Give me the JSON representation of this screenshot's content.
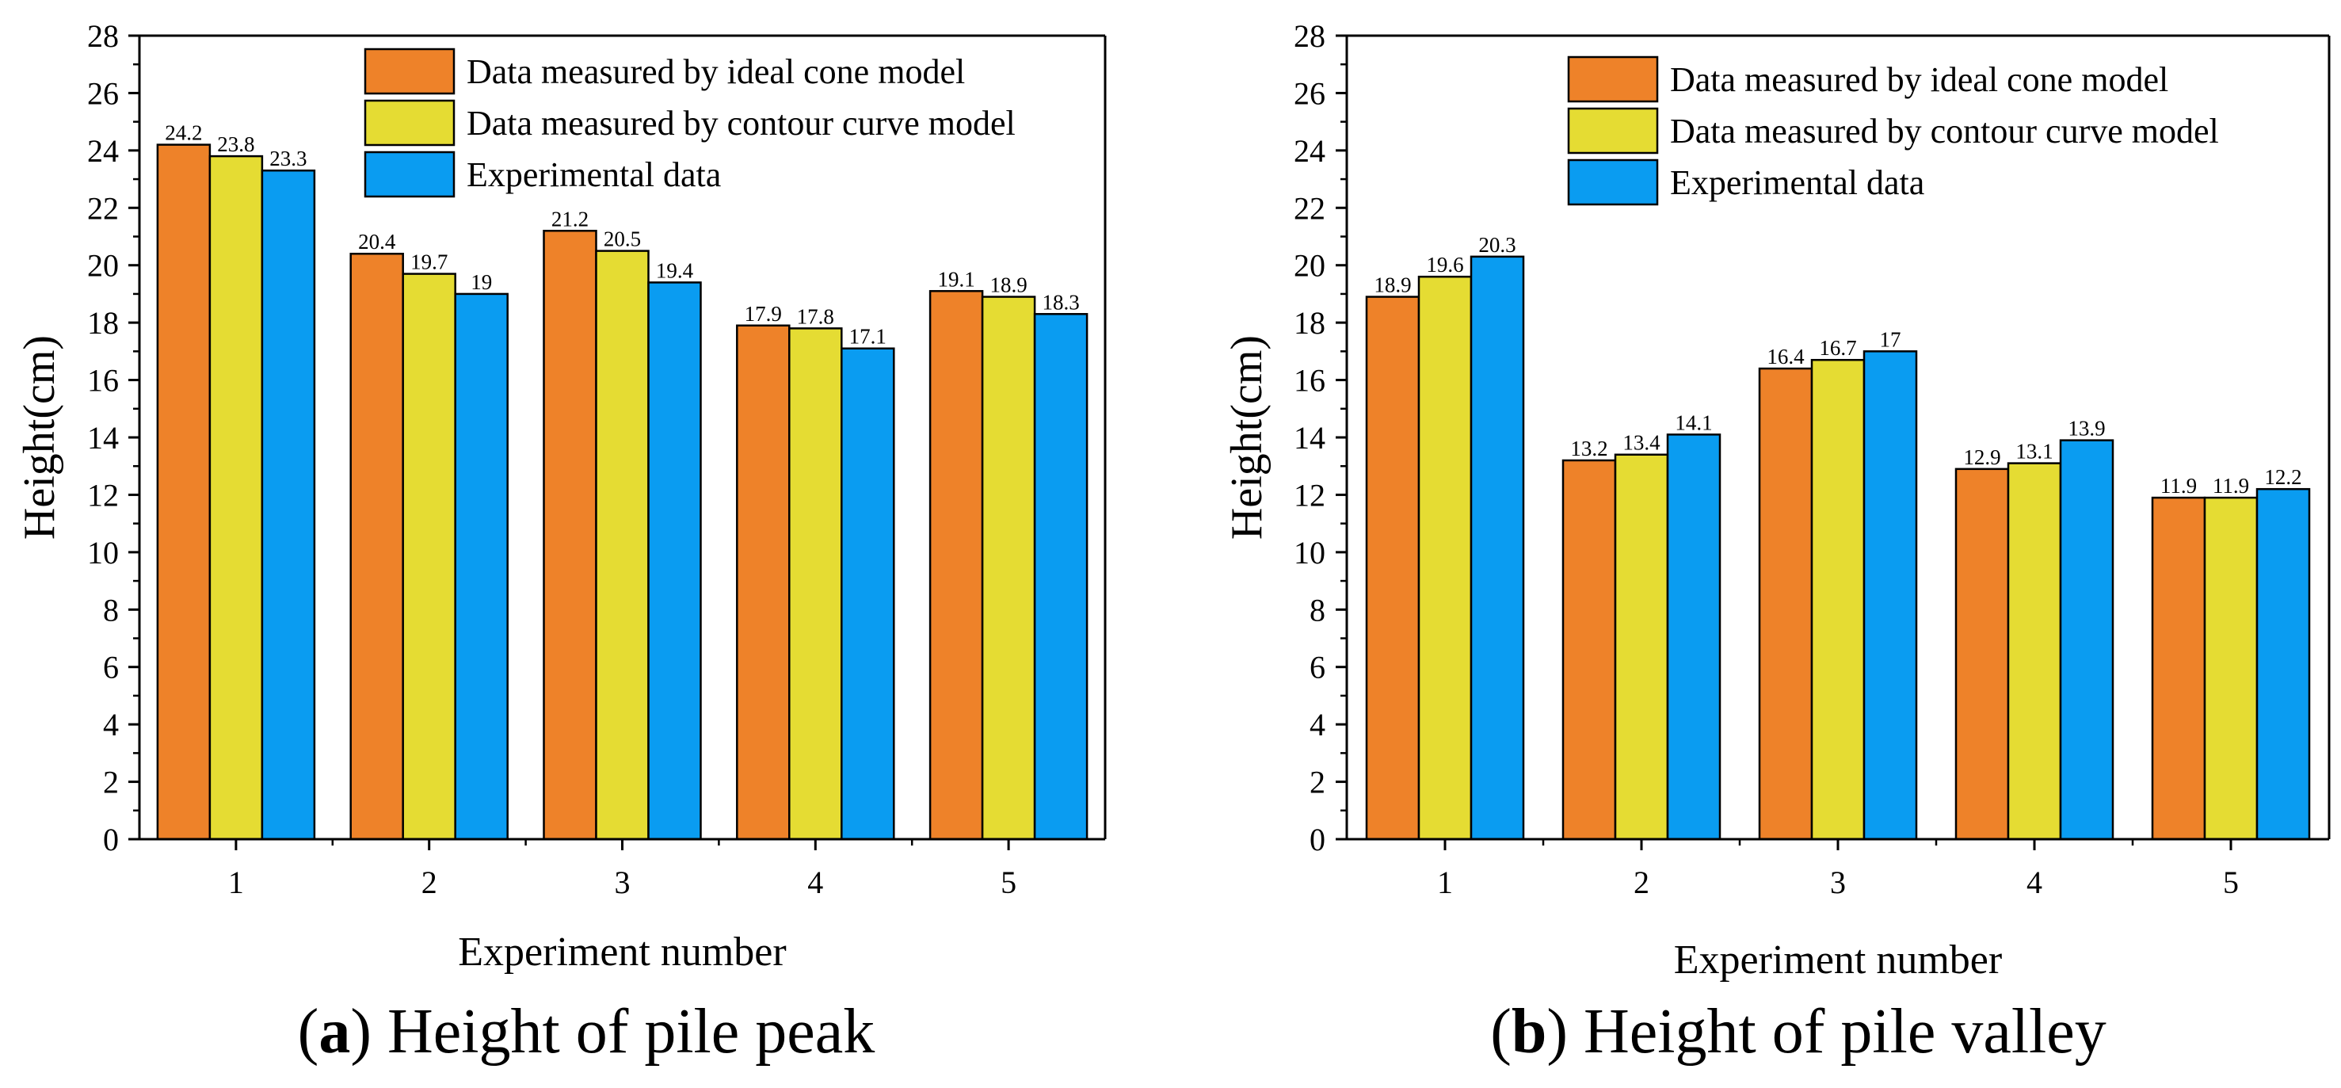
{
  "colors": {
    "series": [
      "#EE8229",
      "#E5DC33",
      "#0A9CF1"
    ],
    "axis": "#000000",
    "background": "#ffffff"
  },
  "chart_data": [
    {
      "type": "bar",
      "caption_letter": "a",
      "caption_text": "Height of pile peak",
      "categories": [
        "1",
        "2",
        "3",
        "4",
        "5"
      ],
      "series": [
        {
          "name": "Data measured by ideal cone model",
          "values": [
            24.2,
            20.4,
            21.2,
            17.9,
            19.1
          ],
          "labels": [
            "24.2",
            "20.4",
            "21.2",
            "17.9",
            "19.1"
          ]
        },
        {
          "name": "Data measured by contour curve model",
          "values": [
            23.8,
            19.7,
            20.5,
            17.8,
            18.9
          ],
          "labels": [
            "23.8",
            "19.7",
            "20.5",
            "17.8",
            "18.9"
          ]
        },
        {
          "name": "Experimental data",
          "values": [
            23.3,
            19,
            19.4,
            17.1,
            18.3
          ],
          "labels": [
            "23.3",
            "19",
            "19.4",
            "17.1",
            "18.3"
          ]
        }
      ],
      "xlabel": "Experiment number",
      "ylabel": "Height(cm)",
      "ylim": [
        0,
        28
      ],
      "yticks": [
        "0",
        "2",
        "4",
        "6",
        "8",
        "10",
        "12",
        "14",
        "16",
        "18",
        "20",
        "22",
        "24",
        "26",
        "28"
      ],
      "grid": false,
      "legend": "top-right"
    },
    {
      "type": "bar",
      "caption_letter": "b",
      "caption_text": "Height of pile valley",
      "categories": [
        "1",
        "2",
        "3",
        "4",
        "5"
      ],
      "series": [
        {
          "name": "Data measured by ideal cone model",
          "values": [
            18.9,
            13.2,
            16.4,
            12.9,
            11.9
          ],
          "labels": [
            "18.9",
            "13.2",
            "16.4",
            "12.9",
            "11.9"
          ]
        },
        {
          "name": "Data measured by contour curve model",
          "values": [
            19.6,
            13.4,
            16.7,
            13.1,
            11.9
          ],
          "labels": [
            "19.6",
            "13.4",
            "16.7",
            "13.1",
            "11.9"
          ]
        },
        {
          "name": "Experimental data",
          "values": [
            20.3,
            14.1,
            17,
            13.9,
            12.2
          ],
          "labels": [
            "20.3",
            "14.1",
            "17",
            "13.9",
            "12.2"
          ]
        }
      ],
      "xlabel": "Experiment number",
      "ylabel": "Height(cm)",
      "ylim": [
        0,
        28
      ],
      "yticks": [
        "0",
        "2",
        "4",
        "6",
        "8",
        "10",
        "12",
        "14",
        "16",
        "18",
        "20",
        "22",
        "24",
        "26",
        "28"
      ],
      "grid": false,
      "legend": "top-right"
    }
  ]
}
